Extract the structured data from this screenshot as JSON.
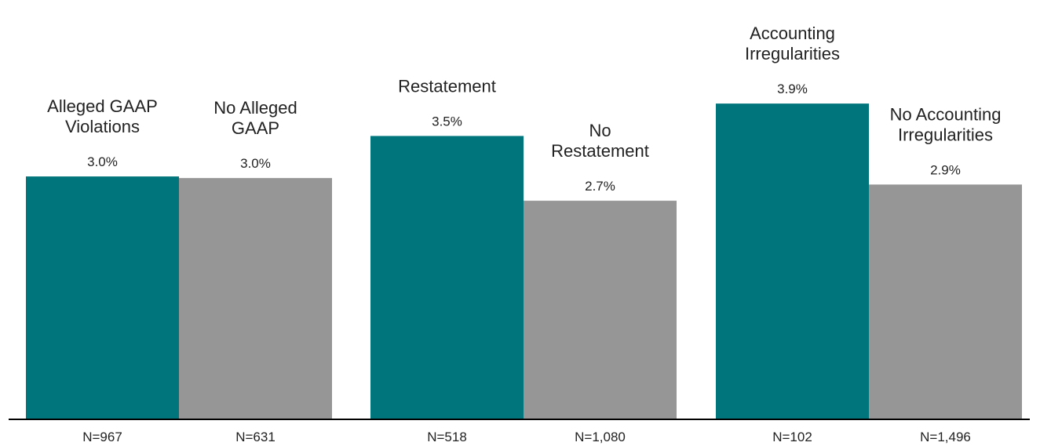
{
  "chart_data": {
    "type": "bar",
    "title": "",
    "xlabel": "",
    "ylabel": "",
    "ylim": [
      0,
      4.2
    ],
    "grid": false,
    "value_format": "percent",
    "colors": {
      "group_a": "#00767c",
      "group_b": "#969696"
    },
    "groups": [
      {
        "bars": [
          {
            "label": "Alleged GAAP Violations",
            "value": 3.0,
            "value_label": "3.0%",
            "n_label": "N=967",
            "color": "#00767c"
          },
          {
            "label": "No Alleged GAAP",
            "value": 2.98,
            "value_label": "3.0%",
            "n_label": "N=631",
            "color": "#969696"
          }
        ]
      },
      {
        "bars": [
          {
            "label": "Restatement",
            "value": 3.5,
            "value_label": "3.5%",
            "n_label": "N=518",
            "color": "#00767c"
          },
          {
            "label": "No Restatement",
            "value": 2.7,
            "value_label": "2.7%",
            "n_label": "N=1,080",
            "color": "#969696"
          }
        ]
      },
      {
        "bars": [
          {
            "label": "Accounting Irregularities",
            "value": 3.9,
            "value_label": "3.9%",
            "n_label": "N=102",
            "color": "#00767c"
          },
          {
            "label": "No Accounting Irregularities",
            "value": 2.9,
            "value_label": "2.9%",
            "n_label": "N=1,496",
            "color": "#969696"
          }
        ]
      }
    ]
  }
}
